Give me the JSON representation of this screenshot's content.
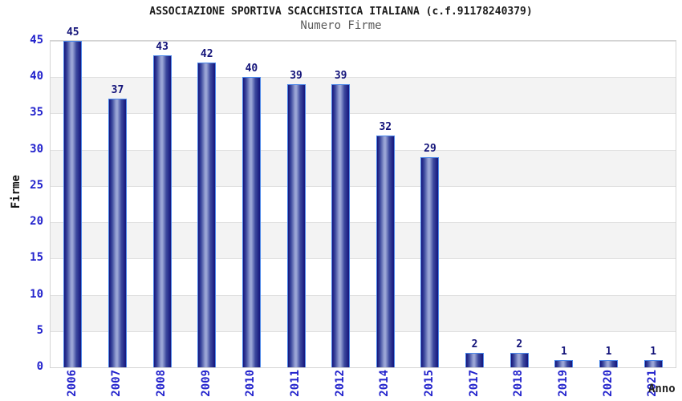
{
  "header": {
    "title": "ASSOCIAZIONE SPORTIVA SCACCHISTICA ITALIANA (c.f.91178240379)",
    "subtitle": "Numero Firme"
  },
  "chart_data": {
    "type": "bar",
    "title": "ASSOCIAZIONE SPORTIVA SCACCHISTICA ITALIANA (c.f.91178240379)",
    "subtitle": "Numero Firme",
    "categories": [
      "2006",
      "2007",
      "2008",
      "2009",
      "2010",
      "2011",
      "2012",
      "2014",
      "2015",
      "2017",
      "2018",
      "2019",
      "2020",
      "2021"
    ],
    "values": [
      45,
      37,
      43,
      42,
      40,
      39,
      39,
      32,
      29,
      2,
      2,
      1,
      1,
      1
    ],
    "xlabel": "Anno",
    "ylabel": "Firme",
    "ylim": [
      0,
      45
    ],
    "ytick_step": 5,
    "grid": true,
    "legend_position": "none",
    "bar_value_labels_shown": true
  },
  "colors": {
    "title": "#1a1a1a",
    "subtitle": "#5a5a5a",
    "tick_label": "#2222cc",
    "value_label": "#14147a",
    "bar_border": "#4a86e8",
    "bar_dark": "#15157d",
    "bar_mid": "#3d4a9e",
    "bar_light": "#9aa5d6",
    "band_gray": "#f3f3f3",
    "band_white": "#ffffff",
    "gridline": "#e0e0e0",
    "axis_border": "#d4d4d4",
    "axis_title": "#111111",
    "xlabel_color": "#222222"
  }
}
